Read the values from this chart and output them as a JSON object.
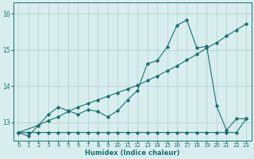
{
  "xlabel": "Humidex (Indice chaleur)",
  "bg_color": "#d8eeee",
  "line_color": "#1a7070",
  "grid_color": "#b0cccc",
  "xlim": [
    -0.5,
    23.5
  ],
  "ylim": [
    12.5,
    16.3
  ],
  "yticks": [
    13,
    14,
    15,
    16
  ],
  "xticks": [
    0,
    1,
    2,
    3,
    4,
    5,
    6,
    7,
    8,
    9,
    10,
    11,
    12,
    13,
    14,
    15,
    16,
    17,
    18,
    19,
    20,
    21,
    22,
    23
  ],
  "line1_x": [
    0,
    1,
    2,
    3,
    4,
    5,
    6,
    7,
    8,
    9,
    10,
    11,
    12,
    13,
    14,
    15,
    16,
    17,
    18,
    19,
    20,
    21,
    22,
    23
  ],
  "line1_y": [
    12.72,
    12.72,
    12.72,
    12.72,
    12.72,
    12.72,
    12.72,
    12.72,
    12.72,
    12.72,
    12.72,
    12.72,
    12.72,
    12.72,
    12.72,
    12.72,
    12.72,
    12.72,
    12.72,
    12.72,
    12.72,
    12.72,
    12.72,
    13.1
  ],
  "line2_x": [
    0,
    2,
    3,
    4,
    5,
    6,
    7,
    8,
    9,
    10,
    11,
    12,
    13,
    14,
    15,
    16,
    17,
    18,
    19,
    20,
    21,
    22,
    23
  ],
  "line2_y": [
    12.72,
    12.92,
    13.05,
    13.15,
    13.3,
    13.42,
    13.52,
    13.62,
    13.72,
    13.82,
    13.92,
    14.02,
    14.15,
    14.28,
    14.42,
    14.56,
    14.72,
    14.88,
    15.05,
    15.2,
    15.38,
    15.55,
    15.72
  ],
  "line3_x": [
    0,
    1,
    2,
    3,
    4,
    5,
    6,
    7,
    8,
    9,
    10,
    11,
    12,
    13,
    14,
    15,
    16,
    17,
    18,
    19,
    20,
    21,
    22,
    23
  ],
  "line3_y": [
    12.72,
    12.62,
    12.92,
    13.22,
    13.42,
    13.32,
    13.22,
    13.35,
    13.3,
    13.15,
    13.32,
    13.62,
    13.88,
    14.62,
    14.7,
    15.08,
    15.68,
    15.82,
    15.05,
    15.1,
    13.45,
    12.78,
    13.1,
    13.1
  ]
}
